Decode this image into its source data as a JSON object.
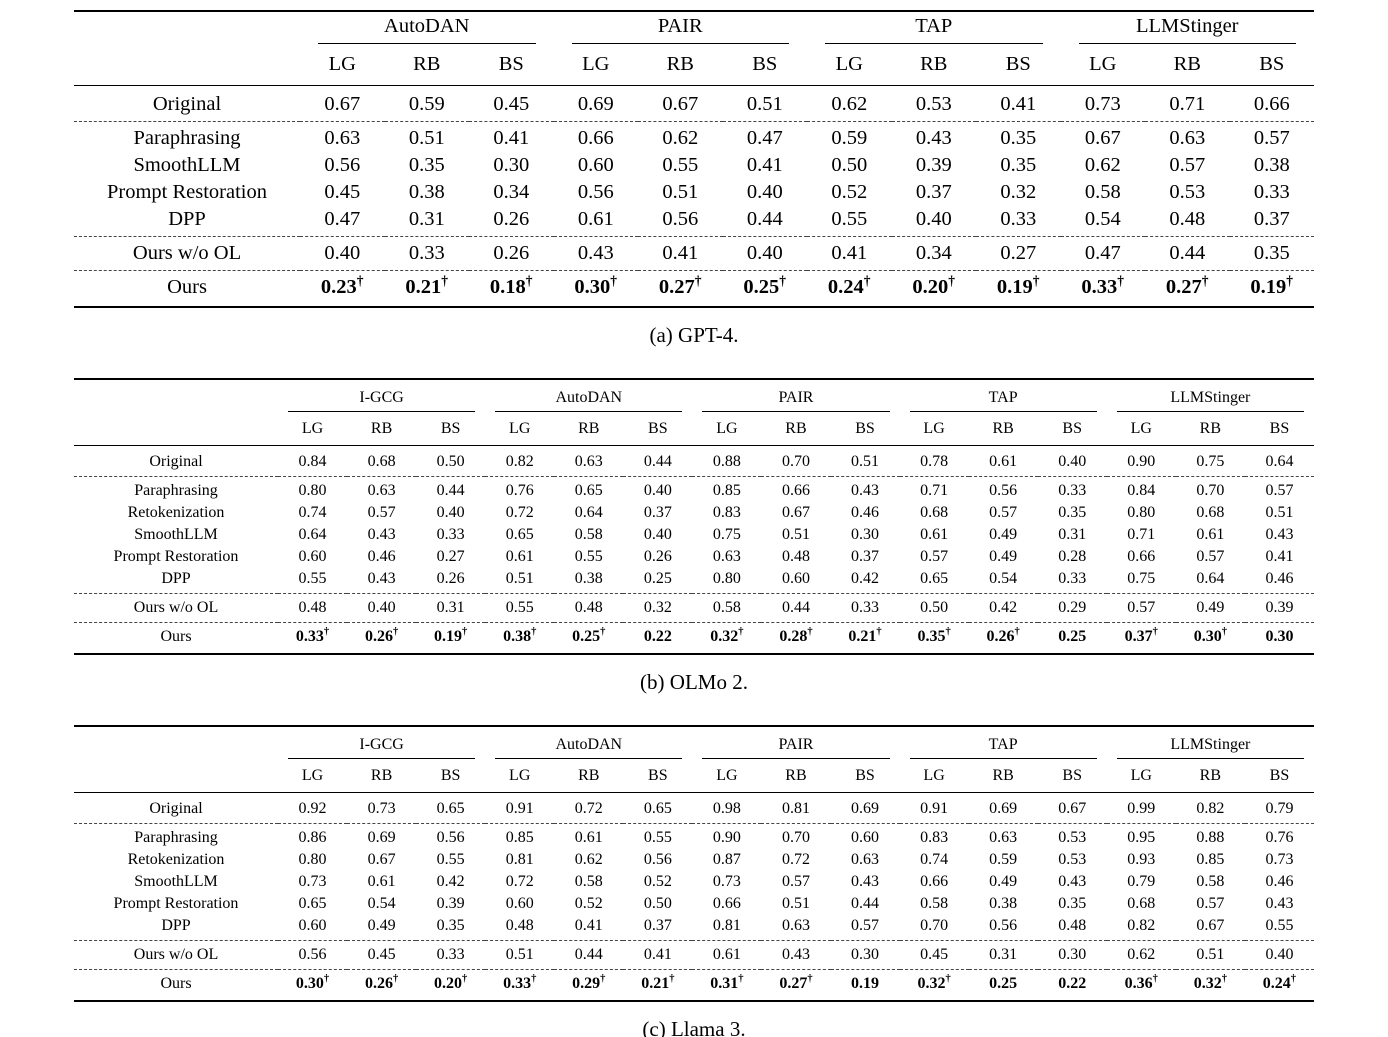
{
  "figure": {
    "tables": [
      {
        "id": "gpt4",
        "caption": "(a) GPT-4.",
        "corner_label": "",
        "groups": [
          {
            "label": "AutoDAN"
          },
          {
            "label": "PAIR"
          },
          {
            "label": "TAP"
          },
          {
            "label": "LLMStinger"
          }
        ],
        "subheaders": [
          "LG",
          "RB",
          "BS"
        ],
        "rows": [
          {
            "label": "Original",
            "values": [
              "0.67",
              "0.59",
              "0.45",
              "0.69",
              "0.67",
              "0.51",
              "0.62",
              "0.53",
              "0.41",
              "0.73",
              "0.71",
              "0.66"
            ],
            "bold": false,
            "rule_after": "dashed"
          },
          {
            "label": "Paraphrasing",
            "values": [
              "0.63",
              "0.51",
              "0.41",
              "0.66",
              "0.62",
              "0.47",
              "0.59",
              "0.43",
              "0.35",
              "0.67",
              "0.63",
              "0.57"
            ],
            "bold": false
          },
          {
            "label": "SmoothLLM",
            "values": [
              "0.56",
              "0.35",
              "0.30",
              "0.60",
              "0.55",
              "0.41",
              "0.50",
              "0.39",
              "0.35",
              "0.62",
              "0.57",
              "0.38"
            ],
            "bold": false
          },
          {
            "label": "Prompt Restoration",
            "values": [
              "0.45",
              "0.38",
              "0.34",
              "0.56",
              "0.51",
              "0.40",
              "0.52",
              "0.37",
              "0.32",
              "0.58",
              "0.53",
              "0.33"
            ],
            "bold": false
          },
          {
            "label": "DPP",
            "values": [
              "0.47",
              "0.31",
              "0.26",
              "0.61",
              "0.56",
              "0.44",
              "0.55",
              "0.40",
              "0.33",
              "0.54",
              "0.48",
              "0.37"
            ],
            "bold": false,
            "rule_after": "dashed"
          },
          {
            "label": "Ours w/o OL",
            "values": [
              "0.40",
              "0.33",
              "0.26",
              "0.43",
              "0.41",
              "0.40",
              "0.41",
              "0.34",
              "0.27",
              "0.47",
              "0.44",
              "0.35"
            ],
            "bold": false,
            "rule_after": "dashed"
          },
          {
            "label": "Ours",
            "values": [
              "0.23†",
              "0.21†",
              "0.18†",
              "0.30†",
              "0.27†",
              "0.25†",
              "0.24†",
              "0.20†",
              "0.19†",
              "0.33†",
              "0.27†",
              "0.19†"
            ],
            "bold": true
          }
        ]
      },
      {
        "id": "olmo2",
        "caption": "(b) OLMo 2.",
        "corner_label": "",
        "groups": [
          {
            "label": "I-GCG"
          },
          {
            "label": "AutoDAN"
          },
          {
            "label": "PAIR"
          },
          {
            "label": "TAP"
          },
          {
            "label": "LLMStinger"
          }
        ],
        "subheaders": [
          "LG",
          "RB",
          "BS"
        ],
        "rows": [
          {
            "label": "Original",
            "values": [
              "0.84",
              "0.68",
              "0.50",
              "0.82",
              "0.63",
              "0.44",
              "0.88",
              "0.70",
              "0.51",
              "0.78",
              "0.61",
              "0.40",
              "0.90",
              "0.75",
              "0.64"
            ],
            "bold": false,
            "rule_after": "dashed"
          },
          {
            "label": "Paraphrasing",
            "values": [
              "0.80",
              "0.63",
              "0.44",
              "0.76",
              "0.65",
              "0.40",
              "0.85",
              "0.66",
              "0.43",
              "0.71",
              "0.56",
              "0.33",
              "0.84",
              "0.70",
              "0.57"
            ],
            "bold": false
          },
          {
            "label": "Retokenization",
            "values": [
              "0.74",
              "0.57",
              "0.40",
              "0.72",
              "0.64",
              "0.37",
              "0.83",
              "0.67",
              "0.46",
              "0.68",
              "0.57",
              "0.35",
              "0.80",
              "0.68",
              "0.51"
            ],
            "bold": false
          },
          {
            "label": "SmoothLLM",
            "values": [
              "0.64",
              "0.43",
              "0.33",
              "0.65",
              "0.58",
              "0.40",
              "0.75",
              "0.51",
              "0.30",
              "0.61",
              "0.49",
              "0.31",
              "0.71",
              "0.61",
              "0.43"
            ],
            "bold": false
          },
          {
            "label": "Prompt Restoration",
            "values": [
              "0.60",
              "0.46",
              "0.27",
              "0.61",
              "0.55",
              "0.26",
              "0.63",
              "0.48",
              "0.37",
              "0.57",
              "0.49",
              "0.28",
              "0.66",
              "0.57",
              "0.41"
            ],
            "bold": false
          },
          {
            "label": "DPP",
            "values": [
              "0.55",
              "0.43",
              "0.26",
              "0.51",
              "0.38",
              "0.25",
              "0.80",
              "0.60",
              "0.42",
              "0.65",
              "0.54",
              "0.33",
              "0.75",
              "0.64",
              "0.46"
            ],
            "bold": false,
            "rule_after": "dashed"
          },
          {
            "label": "Ours w/o OL",
            "values": [
              "0.48",
              "0.40",
              "0.31",
              "0.55",
              "0.48",
              "0.32",
              "0.58",
              "0.44",
              "0.33",
              "0.50",
              "0.42",
              "0.29",
              "0.57",
              "0.49",
              "0.39"
            ],
            "bold": false,
            "rule_after": "dashed"
          },
          {
            "label": "Ours",
            "values": [
              "0.33†",
              "0.26†",
              "0.19†",
              "0.38†",
              "0.25†",
              "0.22",
              "0.32†",
              "0.28†",
              "0.21†",
              "0.35†",
              "0.26†",
              "0.25",
              "0.37†",
              "0.30†",
              "0.30"
            ],
            "bold": true
          }
        ]
      },
      {
        "id": "llama3",
        "caption": "(c) Llama 3.",
        "corner_label": "",
        "groups": [
          {
            "label": "I-GCG"
          },
          {
            "label": "AutoDAN"
          },
          {
            "label": "PAIR"
          },
          {
            "label": "TAP"
          },
          {
            "label": "LLMStinger"
          }
        ],
        "subheaders": [
          "LG",
          "RB",
          "BS"
        ],
        "rows": [
          {
            "label": "Original",
            "values": [
              "0.92",
              "0.73",
              "0.65",
              "0.91",
              "0.72",
              "0.65",
              "0.98",
              "0.81",
              "0.69",
              "0.91",
              "0.69",
              "0.67",
              "0.99",
              "0.82",
              "0.79"
            ],
            "bold": false,
            "rule_after": "dashed"
          },
          {
            "label": "Paraphrasing",
            "values": [
              "0.86",
              "0.69",
              "0.56",
              "0.85",
              "0.61",
              "0.55",
              "0.90",
              "0.70",
              "0.60",
              "0.83",
              "0.63",
              "0.53",
              "0.95",
              "0.88",
              "0.76"
            ],
            "bold": false
          },
          {
            "label": "Retokenization",
            "values": [
              "0.80",
              "0.67",
              "0.55",
              "0.81",
              "0.62",
              "0.56",
              "0.87",
              "0.72",
              "0.63",
              "0.74",
              "0.59",
              "0.53",
              "0.93",
              "0.85",
              "0.73"
            ],
            "bold": false
          },
          {
            "label": "SmoothLLM",
            "values": [
              "0.73",
              "0.61",
              "0.42",
              "0.72",
              "0.58",
              "0.52",
              "0.73",
              "0.57",
              "0.43",
              "0.66",
              "0.49",
              "0.43",
              "0.79",
              "0.58",
              "0.46"
            ],
            "bold": false
          },
          {
            "label": "Prompt Restoration",
            "values": [
              "0.65",
              "0.54",
              "0.39",
              "0.60",
              "0.52",
              "0.50",
              "0.66",
              "0.51",
              "0.44",
              "0.58",
              "0.38",
              "0.35",
              "0.68",
              "0.57",
              "0.43"
            ],
            "bold": false
          },
          {
            "label": "DPP",
            "values": [
              "0.60",
              "0.49",
              "0.35",
              "0.48",
              "0.41",
              "0.37",
              "0.81",
              "0.63",
              "0.57",
              "0.70",
              "0.56",
              "0.48",
              "0.82",
              "0.67",
              "0.55"
            ],
            "bold": false,
            "rule_after": "dashed"
          },
          {
            "label": "Ours w/o OL",
            "values": [
              "0.56",
              "0.45",
              "0.33",
              "0.51",
              "0.44",
              "0.41",
              "0.61",
              "0.43",
              "0.30",
              "0.45",
              "0.31",
              "0.30",
              "0.62",
              "0.51",
              "0.40"
            ],
            "bold": false,
            "rule_after": "dashed"
          },
          {
            "label": "Ours",
            "values": [
              "0.30†",
              "0.26†",
              "0.20†",
              "0.33†",
              "0.29†",
              "0.21†",
              "0.31†",
              "0.27†",
              "0.19",
              "0.32†",
              "0.25",
              "0.22",
              "0.36†",
              "0.32†",
              "0.24†"
            ],
            "bold": true
          }
        ]
      }
    ]
  }
}
